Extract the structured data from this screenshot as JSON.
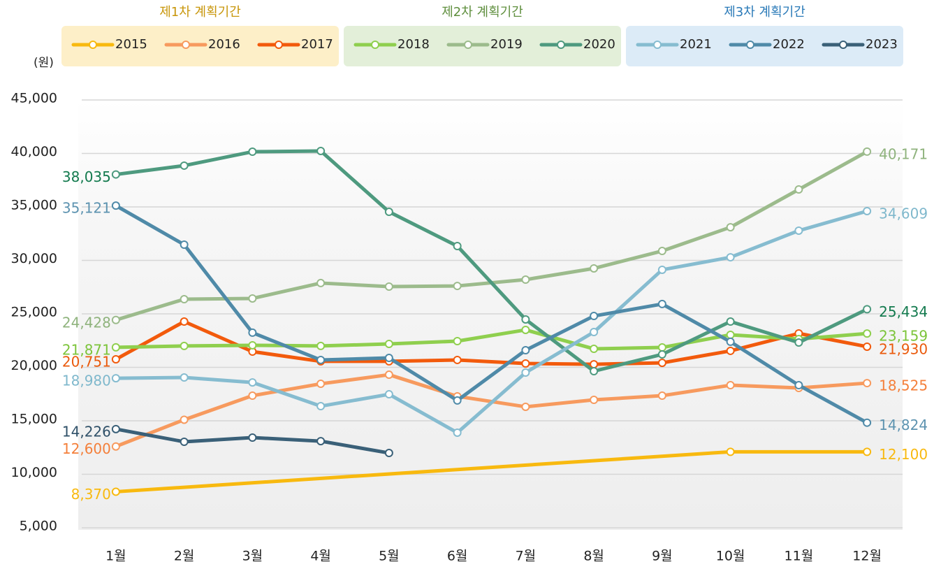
{
  "chart_data": {
    "type": "line",
    "y_label": "(원)",
    "categories": [
      "1월",
      "2월",
      "3월",
      "4월",
      "5월",
      "6월",
      "7월",
      "8월",
      "9월",
      "10월",
      "11월",
      "12월"
    ],
    "ylim": [
      5000,
      45000
    ],
    "yticks": [
      {
        "value": 5000,
        "label": "5,000"
      },
      {
        "value": 10000,
        "label": "10,000"
      },
      {
        "value": 15000,
        "label": "15,000"
      },
      {
        "value": 20000,
        "label": "20,000"
      },
      {
        "value": 25000,
        "label": "25,000"
      },
      {
        "value": 30000,
        "label": "30,000"
      },
      {
        "value": 35000,
        "label": "35,000"
      },
      {
        "value": 40000,
        "label": "40,000"
      },
      {
        "value": 45000,
        "label": "45,000"
      }
    ],
    "grid": true,
    "legend_groups": [
      {
        "title": "제1차 계획기간",
        "color": "#fdefc8",
        "title_color": "#c8960a"
      },
      {
        "title": "제2차 계획기간",
        "color": "#e3efd9",
        "title_color": "#5f8f3e"
      },
      {
        "title": "제3차 계획기간",
        "color": "#dcebf7",
        "title_color": "#2a7ab8"
      }
    ],
    "series": [
      {
        "name": "2015",
        "color": "#f8b90f",
        "label_color": "#f8b90f",
        "x": [
          "1월",
          "10월",
          "12월"
        ],
        "values": [
          8370,
          12100,
          12100
        ],
        "value_labels": [
          "8,370",
          null,
          "12,100"
        ]
      },
      {
        "name": "2016",
        "color": "#f79a5e",
        "label_color": "#f47f3a",
        "values": [
          12600,
          15100,
          17350,
          18460,
          19310,
          17290,
          16310,
          16960,
          17350,
          18330,
          18070,
          18525
        ],
        "value_labels": [
          "12,600",
          null,
          null,
          null,
          null,
          null,
          null,
          null,
          null,
          null,
          null,
          "18,525"
        ]
      },
      {
        "name": "2017",
        "color": "#f25a0c",
        "label_color": "#ea5a0c",
        "values": [
          20751,
          24280,
          21470,
          20560,
          20560,
          20690,
          20360,
          20290,
          20420,
          21540,
          23170,
          21930
        ],
        "value_labels": [
          "20,751",
          null,
          null,
          null,
          null,
          null,
          null,
          null,
          null,
          null,
          null,
          "21,930"
        ]
      },
      {
        "name": "2018",
        "color": "#8fcf4e",
        "label_color": "#7cc43a",
        "values": [
          21871,
          22000,
          22060,
          22000,
          22190,
          22450,
          23500,
          21730,
          21860,
          23040,
          22650,
          23159
        ],
        "value_labels": [
          "21,871",
          null,
          null,
          null,
          null,
          null,
          null,
          null,
          null,
          null,
          null,
          "23,159"
        ]
      },
      {
        "name": "2019",
        "color": "#9cbb8c",
        "label_color": "#8fb37d",
        "values": [
          24428,
          26370,
          26440,
          27880,
          27550,
          27610,
          28200,
          29250,
          30880,
          33100,
          36630,
          40171
        ],
        "value_labels": [
          "24,428",
          null,
          null,
          null,
          null,
          null,
          null,
          null,
          null,
          null,
          null,
          "40,171"
        ]
      },
      {
        "name": "2020",
        "color": "#4e9a7f",
        "label_color": "#137a4e",
        "values": [
          38035,
          38860,
          40160,
          40230,
          34540,
          31340,
          24480,
          19640,
          21210,
          24280,
          22320,
          25434
        ],
        "value_labels": [
          "38,035",
          null,
          null,
          null,
          null,
          null,
          null,
          null,
          null,
          null,
          null,
          "25,434"
        ]
      },
      {
        "name": "2021",
        "color": "#86bcd0",
        "label_color": "#7fb8cc",
        "values": [
          18980,
          19050,
          18590,
          16370,
          17480,
          13890,
          19510,
          23300,
          29120,
          30290,
          32780,
          34609
        ],
        "value_labels": [
          "18,980",
          null,
          null,
          null,
          null,
          null,
          null,
          null,
          null,
          null,
          null,
          "34,609"
        ]
      },
      {
        "name": "2022",
        "color": "#4f8aa8",
        "label_color": "#5d93b0",
        "values": [
          35121,
          31470,
          23240,
          20690,
          20880,
          16900,
          21600,
          24800,
          25920,
          22390,
          18330,
          14824
        ],
        "value_labels": [
          "35,121",
          null,
          null,
          null,
          null,
          null,
          null,
          null,
          null,
          null,
          null,
          "14,824"
        ]
      },
      {
        "name": "2023",
        "color": "#3a6078",
        "label_color": "#2f5068",
        "values": [
          14226,
          13040,
          13430,
          13100,
          11990,
          null,
          null,
          null,
          null,
          null,
          null,
          null
        ],
        "value_labels": [
          "14,226",
          null,
          null,
          null,
          null,
          null,
          null,
          null,
          null,
          null,
          null,
          null
        ]
      }
    ]
  }
}
